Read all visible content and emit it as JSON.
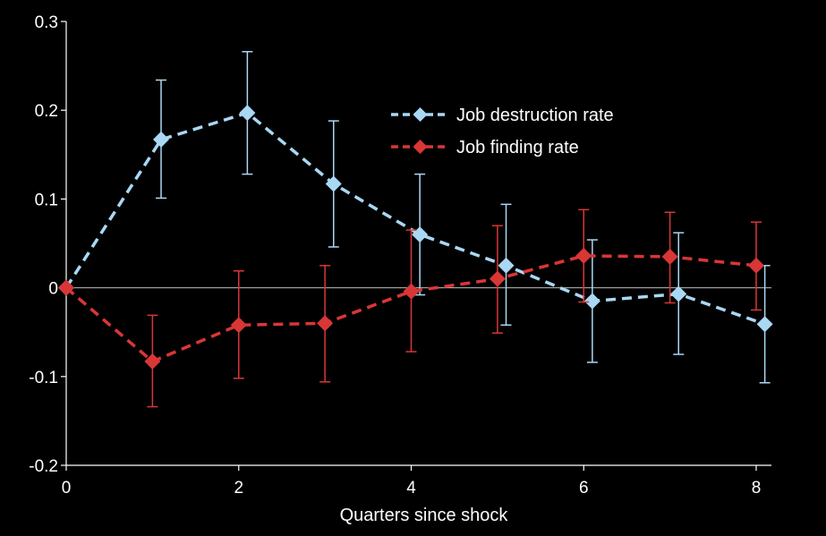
{
  "chart_data": {
    "type": "line",
    "title": "",
    "xlabel": "Quarters since shock",
    "ylabel": "",
    "x": [
      0,
      1,
      2,
      3,
      4,
      5,
      6,
      7,
      8
    ],
    "xlim": [
      0,
      8
    ],
    "ylim": [
      -0.2,
      0.3
    ],
    "x_ticks": [
      0,
      2,
      4,
      6,
      8
    ],
    "y_ticks": [
      -0.2,
      -0.1,
      0,
      0.1,
      0.2,
      0.3
    ],
    "y_tick_labels": [
      "-0.2",
      "-0.1",
      "0",
      "0.1",
      "0.2",
      "0.3"
    ],
    "x_tick_labels": [
      "0",
      "2",
      "4",
      "6",
      "8"
    ],
    "grid": false,
    "zero_line": true,
    "legend_position": "top-right",
    "series": [
      {
        "name": "Job destruction rate",
        "color": "#a9d8f5",
        "line_style": "dashed",
        "marker": "diamond",
        "x": [
          0,
          1.1,
          2.1,
          3.1,
          4.1,
          5.1,
          6.1,
          7.1,
          8.1
        ],
        "values": [
          0,
          0.167,
          0.197,
          0.117,
          0.06,
          0.025,
          -0.015,
          -0.007,
          -0.041
        ],
        "err_low": [
          0,
          0.101,
          0.128,
          0.046,
          -0.008,
          -0.042,
          -0.084,
          -0.075,
          -0.107
        ],
        "err_high": [
          0,
          0.234,
          0.266,
          0.188,
          0.128,
          0.094,
          0.054,
          0.062,
          0.025
        ]
      },
      {
        "name": "Job finding rate",
        "color": "#d93636",
        "line_style": "dashed",
        "marker": "diamond",
        "x": [
          0,
          1,
          2,
          3,
          4,
          5,
          6,
          7,
          8
        ],
        "values": [
          0,
          -0.083,
          -0.042,
          -0.04,
          -0.004,
          0.01,
          0.036,
          0.035,
          0.025
        ],
        "err_low": [
          0,
          -0.134,
          -0.102,
          -0.106,
          -0.072,
          -0.051,
          -0.016,
          -0.017,
          -0.025
        ],
        "err_high": [
          0,
          -0.031,
          0.019,
          0.025,
          0.065,
          0.07,
          0.088,
          0.085,
          0.074
        ]
      }
    ]
  }
}
